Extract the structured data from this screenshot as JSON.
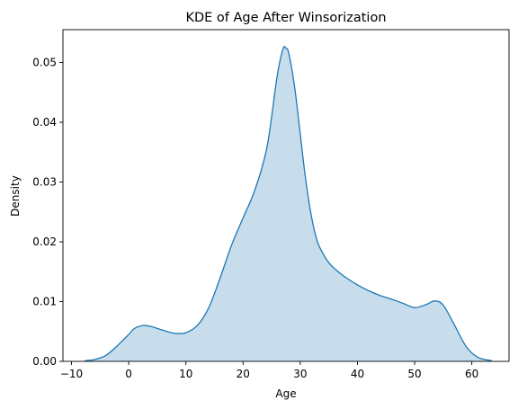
{
  "chart_data": {
    "type": "area",
    "title": "KDE of Age After Winsorization",
    "xlabel": "Age",
    "ylabel": "Density",
    "xlim": [
      -11.5,
      66.5
    ],
    "ylim": [
      0,
      0.0555
    ],
    "xticks": [
      -10,
      0,
      10,
      20,
      30,
      40,
      50,
      60
    ],
    "xtick_labels": [
      "−10",
      "0",
      "10",
      "20",
      "30",
      "40",
      "50",
      "60"
    ],
    "yticks": [
      0,
      0.01,
      0.02,
      0.03,
      0.04,
      0.05
    ],
    "ytick_labels": [
      "0.00",
      "0.01",
      "0.02",
      "0.03",
      "0.04",
      "0.05"
    ],
    "grid": false,
    "series": [
      {
        "name": "Age",
        "color": "#1f77b4",
        "fill_color": "#1f77b4",
        "fill_opacity": 0.25,
        "x": [
          -7.7,
          -6,
          -4,
          -2,
          0,
          1,
          2.5,
          4,
          6,
          8,
          10,
          12,
          14,
          16,
          18,
          20,
          22,
          24,
          25,
          26,
          27,
          27.5,
          28,
          29,
          30,
          31,
          32,
          33,
          34,
          35,
          36,
          38,
          40,
          42,
          44,
          46,
          48,
          50,
          52,
          53.5,
          55,
          57,
          59,
          61,
          63.5
        ],
        "y": [
          0.0001,
          0.0003,
          0.001,
          0.0026,
          0.0045,
          0.0055,
          0.006,
          0.0058,
          0.0052,
          0.0047,
          0.0048,
          0.006,
          0.009,
          0.014,
          0.0195,
          0.024,
          0.0285,
          0.035,
          0.041,
          0.048,
          0.0523,
          0.0524,
          0.0515,
          0.046,
          0.038,
          0.03,
          0.024,
          0.02,
          0.018,
          0.0165,
          0.0155,
          0.014,
          0.0128,
          0.0118,
          0.011,
          0.0104,
          0.0097,
          0.009,
          0.0095,
          0.0101,
          0.0094,
          0.006,
          0.0025,
          0.0007,
          0.0001
        ]
      }
    ]
  }
}
